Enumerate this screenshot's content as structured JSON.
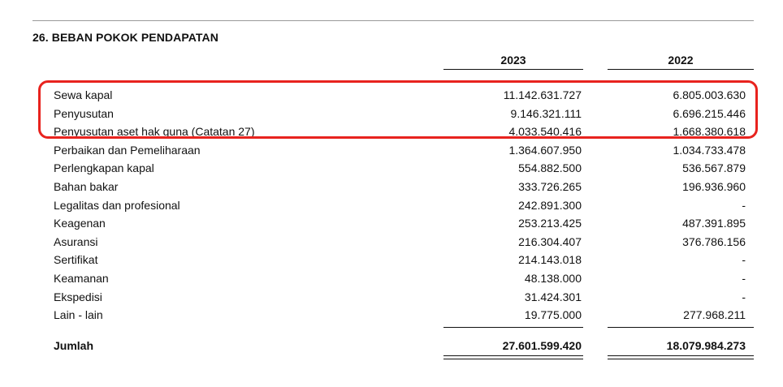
{
  "section": {
    "title": "26. BEBAN POKOK PENDAPATAN"
  },
  "columns": {
    "year_2023": "2023",
    "year_2022": "2022"
  },
  "rows": [
    {
      "label": "Sewa kapal",
      "v2023": "11.142.631.727",
      "v2022": "6.805.003.630"
    },
    {
      "label": "Penyusutan",
      "v2023": "9.146.321.111",
      "v2022": "6.696.215.446"
    },
    {
      "label": "Penyusutan aset hak guna (Catatan 27)",
      "v2023": "4.033.540.416",
      "v2022": "1.668.380.618"
    },
    {
      "label": "Perbaikan dan Pemeliharaan",
      "v2023": "1.364.607.950",
      "v2022": "1.034.733.478"
    },
    {
      "label": "Perlengkapan kapal",
      "v2023": "554.882.500",
      "v2022": "536.567.879"
    },
    {
      "label": "Bahan bakar",
      "v2023": "333.726.265",
      "v2022": "196.936.960"
    },
    {
      "label": "Legalitas dan profesional",
      "v2023": "242.891.300",
      "v2022": "-"
    },
    {
      "label": "Keagenan",
      "v2023": "253.213.425",
      "v2022": "487.391.895"
    },
    {
      "label": "Asuransi",
      "v2023": "216.304.407",
      "v2022": "376.786.156"
    },
    {
      "label": "Sertifikat",
      "v2023": "214.143.018",
      "v2022": "-"
    },
    {
      "label": "Keamanan",
      "v2023": "48.138.000",
      "v2022": "-"
    },
    {
      "label": "Ekspedisi",
      "v2023": "31.424.301",
      "v2022": "-"
    },
    {
      "label": "Lain - lain",
      "v2023": "19.775.000",
      "v2022": "277.968.211"
    }
  ],
  "total": {
    "label": "Jumlah",
    "v2023": "27.601.599.420",
    "v2022": "18.079.984.273"
  },
  "highlight": {
    "color": "#e8231e"
  }
}
